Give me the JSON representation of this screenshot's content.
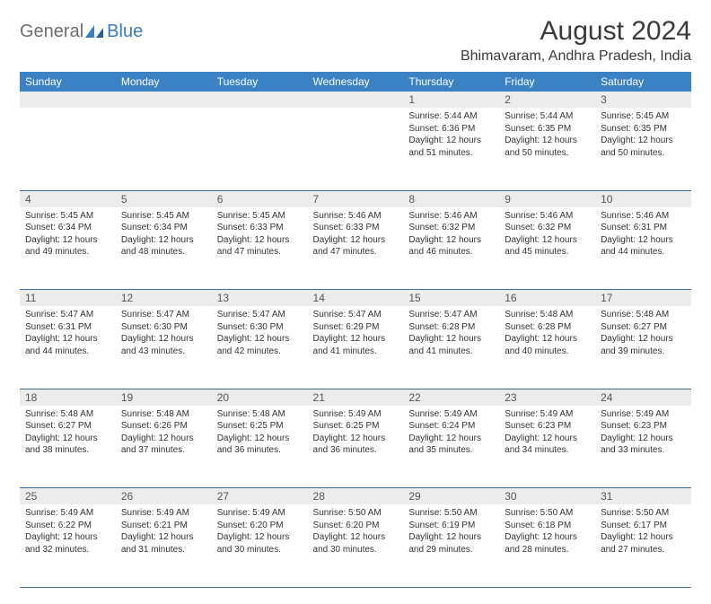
{
  "logo": {
    "text1": "General",
    "text2": "Blue"
  },
  "title": "August 2024",
  "location": "Bhimavaram, Andhra Pradesh, India",
  "colors": {
    "header_bg": "#3b82c4",
    "header_text": "#ffffff",
    "daynum_bg": "#ececec",
    "daynum_text": "#555555",
    "body_text": "#333333",
    "rule": "#3b6ea0",
    "logo_gray": "#6e6e6e",
    "logo_blue": "#3b7bbf"
  },
  "weekdays": [
    "Sunday",
    "Monday",
    "Tuesday",
    "Wednesday",
    "Thursday",
    "Friday",
    "Saturday"
  ],
  "weeks": [
    [
      null,
      null,
      null,
      null,
      {
        "n": "1",
        "sr": "5:44 AM",
        "ss": "6:36 PM",
        "dl": "12 hours and 51 minutes."
      },
      {
        "n": "2",
        "sr": "5:44 AM",
        "ss": "6:35 PM",
        "dl": "12 hours and 50 minutes."
      },
      {
        "n": "3",
        "sr": "5:45 AM",
        "ss": "6:35 PM",
        "dl": "12 hours and 50 minutes."
      }
    ],
    [
      {
        "n": "4",
        "sr": "5:45 AM",
        "ss": "6:34 PM",
        "dl": "12 hours and 49 minutes."
      },
      {
        "n": "5",
        "sr": "5:45 AM",
        "ss": "6:34 PM",
        "dl": "12 hours and 48 minutes."
      },
      {
        "n": "6",
        "sr": "5:45 AM",
        "ss": "6:33 PM",
        "dl": "12 hours and 47 minutes."
      },
      {
        "n": "7",
        "sr": "5:46 AM",
        "ss": "6:33 PM",
        "dl": "12 hours and 47 minutes."
      },
      {
        "n": "8",
        "sr": "5:46 AM",
        "ss": "6:32 PM",
        "dl": "12 hours and 46 minutes."
      },
      {
        "n": "9",
        "sr": "5:46 AM",
        "ss": "6:32 PM",
        "dl": "12 hours and 45 minutes."
      },
      {
        "n": "10",
        "sr": "5:46 AM",
        "ss": "6:31 PM",
        "dl": "12 hours and 44 minutes."
      }
    ],
    [
      {
        "n": "11",
        "sr": "5:47 AM",
        "ss": "6:31 PM",
        "dl": "12 hours and 44 minutes."
      },
      {
        "n": "12",
        "sr": "5:47 AM",
        "ss": "6:30 PM",
        "dl": "12 hours and 43 minutes."
      },
      {
        "n": "13",
        "sr": "5:47 AM",
        "ss": "6:30 PM",
        "dl": "12 hours and 42 minutes."
      },
      {
        "n": "14",
        "sr": "5:47 AM",
        "ss": "6:29 PM",
        "dl": "12 hours and 41 minutes."
      },
      {
        "n": "15",
        "sr": "5:47 AM",
        "ss": "6:28 PM",
        "dl": "12 hours and 41 minutes."
      },
      {
        "n": "16",
        "sr": "5:48 AM",
        "ss": "6:28 PM",
        "dl": "12 hours and 40 minutes."
      },
      {
        "n": "17",
        "sr": "5:48 AM",
        "ss": "6:27 PM",
        "dl": "12 hours and 39 minutes."
      }
    ],
    [
      {
        "n": "18",
        "sr": "5:48 AM",
        "ss": "6:27 PM",
        "dl": "12 hours and 38 minutes."
      },
      {
        "n": "19",
        "sr": "5:48 AM",
        "ss": "6:26 PM",
        "dl": "12 hours and 37 minutes."
      },
      {
        "n": "20",
        "sr": "5:48 AM",
        "ss": "6:25 PM",
        "dl": "12 hours and 36 minutes."
      },
      {
        "n": "21",
        "sr": "5:49 AM",
        "ss": "6:25 PM",
        "dl": "12 hours and 36 minutes."
      },
      {
        "n": "22",
        "sr": "5:49 AM",
        "ss": "6:24 PM",
        "dl": "12 hours and 35 minutes."
      },
      {
        "n": "23",
        "sr": "5:49 AM",
        "ss": "6:23 PM",
        "dl": "12 hours and 34 minutes."
      },
      {
        "n": "24",
        "sr": "5:49 AM",
        "ss": "6:23 PM",
        "dl": "12 hours and 33 minutes."
      }
    ],
    [
      {
        "n": "25",
        "sr": "5:49 AM",
        "ss": "6:22 PM",
        "dl": "12 hours and 32 minutes."
      },
      {
        "n": "26",
        "sr": "5:49 AM",
        "ss": "6:21 PM",
        "dl": "12 hours and 31 minutes."
      },
      {
        "n": "27",
        "sr": "5:49 AM",
        "ss": "6:20 PM",
        "dl": "12 hours and 30 minutes."
      },
      {
        "n": "28",
        "sr": "5:50 AM",
        "ss": "6:20 PM",
        "dl": "12 hours and 30 minutes."
      },
      {
        "n": "29",
        "sr": "5:50 AM",
        "ss": "6:19 PM",
        "dl": "12 hours and 29 minutes."
      },
      {
        "n": "30",
        "sr": "5:50 AM",
        "ss": "6:18 PM",
        "dl": "12 hours and 28 minutes."
      },
      {
        "n": "31",
        "sr": "5:50 AM",
        "ss": "6:17 PM",
        "dl": "12 hours and 27 minutes."
      }
    ]
  ],
  "labels": {
    "sunrise": "Sunrise:",
    "sunset": "Sunset:",
    "daylight": "Daylight:"
  }
}
